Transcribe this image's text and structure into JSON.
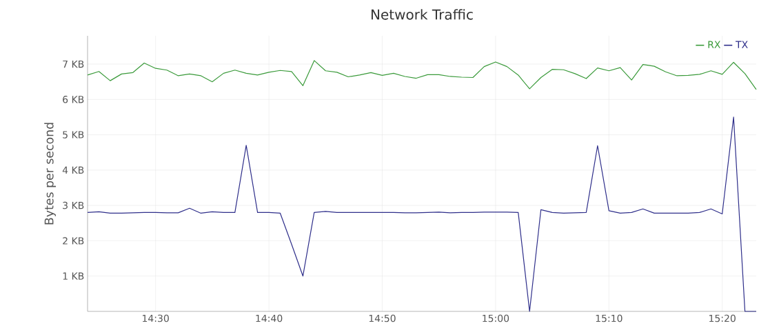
{
  "chart_data": {
    "type": "line",
    "title": "Network Traffic",
    "ylabel": "Bytes per second",
    "x": [
      14.4,
      14.4167,
      14.4333,
      14.45,
      14.4667,
      14.4833,
      14.5,
      14.5167,
      14.5333,
      14.55,
      14.5667,
      14.5833,
      14.6,
      14.6167,
      14.6333,
      14.65,
      14.6667,
      14.6833,
      14.7,
      14.7167,
      14.7333,
      14.75,
      14.7667,
      14.7833,
      14.8,
      14.8167,
      14.8333,
      14.85,
      14.8667,
      14.8833,
      14.9,
      14.9167,
      14.9333,
      14.95,
      14.9667,
      14.9833,
      15.0,
      15.0167,
      15.0333,
      15.05,
      15.0667,
      15.0833,
      15.1,
      15.1167,
      15.1333,
      15.15,
      15.1667,
      15.1833,
      15.2,
      15.2167,
      15.2333,
      15.25,
      15.2667,
      15.2833,
      15.3,
      15.3167,
      15.3333,
      15.35,
      15.3667,
      15.3833
    ],
    "series": [
      {
        "name": "RX",
        "color": "#3a9a3a",
        "values": [
          6.69,
          6.79,
          6.53,
          6.72,
          6.76,
          7.03,
          6.88,
          6.83,
          6.67,
          6.72,
          6.67,
          6.5,
          6.74,
          6.83,
          6.74,
          6.69,
          6.77,
          6.82,
          6.79,
          6.39,
          7.1,
          6.81,
          6.77,
          6.64,
          6.69,
          6.76,
          6.68,
          6.74,
          6.65,
          6.6,
          6.7,
          6.7,
          6.65,
          6.63,
          6.62,
          6.93,
          7.06,
          6.93,
          6.69,
          6.3,
          6.62,
          6.85,
          6.84,
          6.73,
          6.59,
          6.89,
          6.81,
          6.9,
          6.55,
          6.99,
          6.94,
          6.78,
          6.67,
          6.68,
          6.71,
          6.81,
          6.71,
          7.05,
          6.73,
          6.28
        ]
      },
      {
        "name": "TX",
        "color": "#2e2e8a",
        "values": [
          2.8,
          2.82,
          2.78,
          2.78,
          2.79,
          2.8,
          2.8,
          2.79,
          2.79,
          2.92,
          2.78,
          2.82,
          2.8,
          2.8,
          4.7,
          2.8,
          2.8,
          2.78,
          1.9,
          1.0,
          2.8,
          2.83,
          2.8,
          2.8,
          2.8,
          2.8,
          2.8,
          2.8,
          2.79,
          2.79,
          2.8,
          2.81,
          2.79,
          2.8,
          2.8,
          2.81,
          2.81,
          2.81,
          2.8,
          0,
          2.88,
          2.8,
          2.78,
          2.79,
          2.8,
          4.69,
          2.85,
          2.78,
          2.8,
          2.9,
          2.78,
          2.78,
          2.78,
          2.78,
          2.8,
          2.9,
          2.76,
          5.5,
          0,
          0
        ]
      }
    ],
    "xlim": [
      14.4,
      15.3833
    ],
    "ylim": [
      0,
      7.8
    ],
    "xticks": [
      {
        "value": 14.5,
        "label": "14:30"
      },
      {
        "value": 14.6667,
        "label": "14:40"
      },
      {
        "value": 14.8333,
        "label": "14:50"
      },
      {
        "value": 15.0,
        "label": "15:00"
      },
      {
        "value": 15.1667,
        "label": "15:10"
      },
      {
        "value": 15.3333,
        "label": "15:20"
      }
    ],
    "yticks": [
      {
        "value": 1,
        "label": "1 KB"
      },
      {
        "value": 2,
        "label": "2 KB"
      },
      {
        "value": 3,
        "label": "3 KB"
      },
      {
        "value": 4,
        "label": "4 KB"
      },
      {
        "value": 5,
        "label": "5 KB"
      },
      {
        "value": 6,
        "label": "6 KB"
      },
      {
        "value": 7,
        "label": "7 KB"
      }
    ],
    "grid": true,
    "legend": "top right",
    "marker": "none",
    "line_style": "solid"
  }
}
